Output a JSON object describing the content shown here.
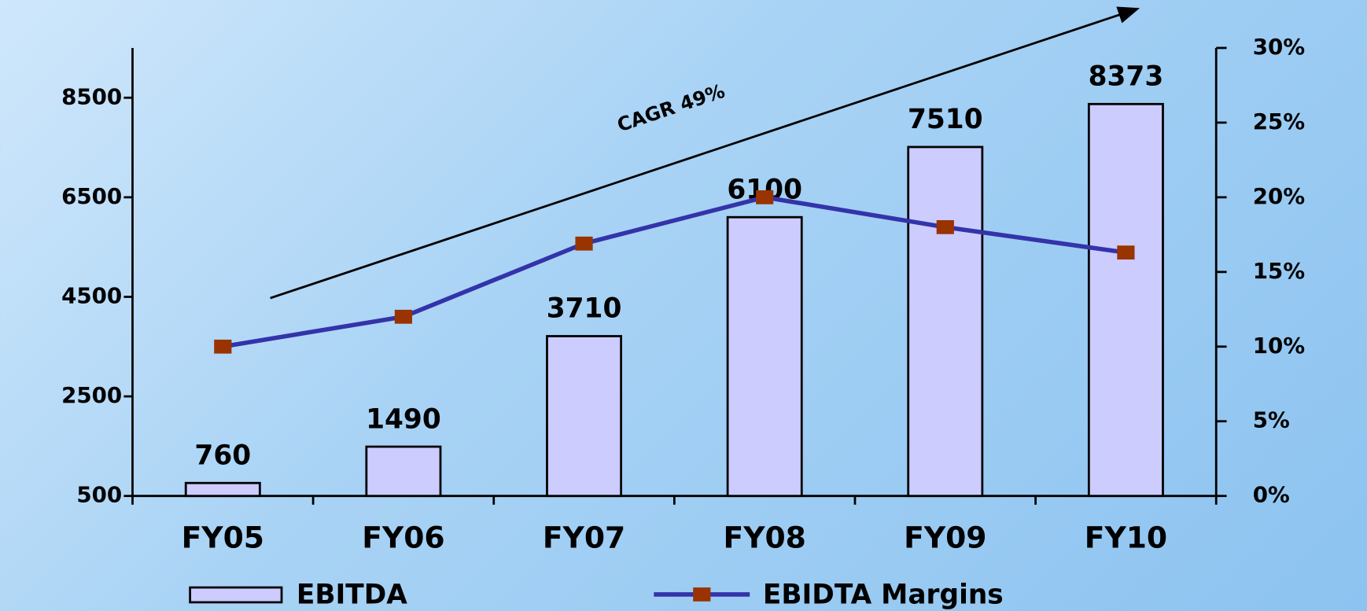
{
  "chart_data": {
    "type": "bar-line",
    "categories": [
      "FY05",
      "FY06",
      "FY07",
      "FY08",
      "FY09",
      "FY10"
    ],
    "series": [
      {
        "name": "EBITDA",
        "type": "bar",
        "color": "#ccccff",
        "values": [
          760,
          1490,
          3710,
          6100,
          7510,
          8373
        ],
        "value_labels": [
          "760",
          "1490",
          "3710",
          "6100",
          "7510",
          "8373"
        ]
      },
      {
        "name": "EBIDTA Margins",
        "type": "line",
        "axis": "y2",
        "color": "#3333aa",
        "marker_color": "#993300",
        "values": [
          10,
          12,
          16.9,
          20,
          18,
          16.3
        ]
      }
    ],
    "ylim": [
      500,
      9500
    ],
    "yticks": [
      500,
      2500,
      4500,
      6500,
      8500
    ],
    "y2lim": [
      0,
      30
    ],
    "y2ticks": [
      {
        "value": 0,
        "label": "0%"
      },
      {
        "value": 5,
        "label": "5%"
      },
      {
        "value": 10,
        "label": "10%"
      },
      {
        "value": 15,
        "label": "15%"
      },
      {
        "value": 20,
        "label": "20%"
      },
      {
        "value": 25,
        "label": "25%"
      },
      {
        "value": 30,
        "label": "30%"
      }
    ],
    "annotations": [
      "CAGR 49%"
    ],
    "legend": "bottom"
  }
}
